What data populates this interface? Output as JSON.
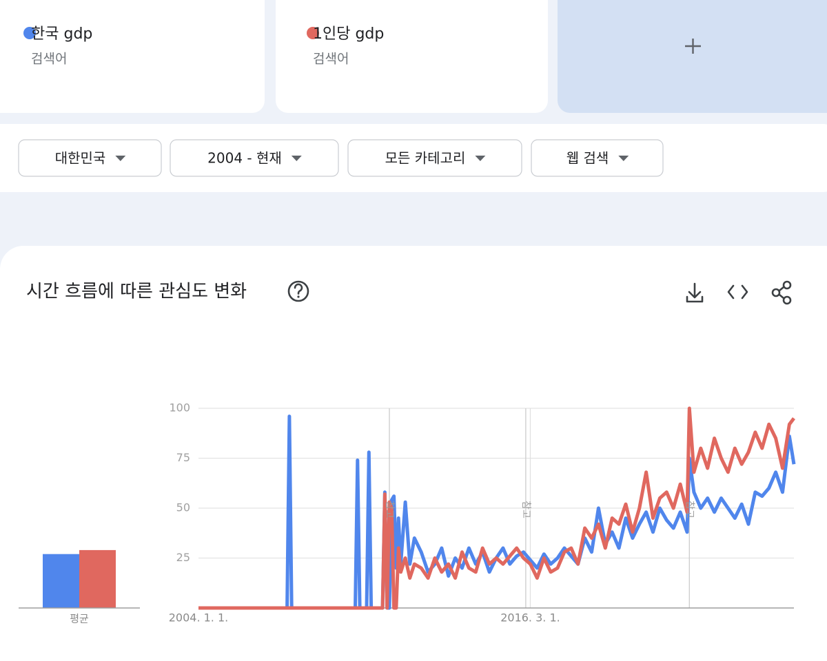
{
  "term_caption": "검색어",
  "filters": [
    "대한민국",
    "2004 - 현재",
    "모든 카테고리",
    "웹 검색"
  ],
  "chart_data": {
    "type": "line",
    "title": "시간 흐름에 따른 관심도 변화",
    "average_label": "평균",
    "x": [
      "2004-01",
      "2007-04",
      "2007-05",
      "2007-06",
      "2009-10",
      "2009-11",
      "2009-12",
      "2010-03",
      "2010-04",
      "2010-05",
      "2010-10",
      "2010-11",
      "2010-12",
      "2011-01",
      "2011-02",
      "2011-03",
      "2011-04",
      "2011-05",
      "2011-06",
      "2011-08",
      "2011-10",
      "2011-12",
      "2012-03",
      "2012-06",
      "2012-09",
      "2012-12",
      "2013-03",
      "2013-06",
      "2013-09",
      "2013-12",
      "2014-03",
      "2014-06",
      "2014-09",
      "2014-12",
      "2015-03",
      "2015-06",
      "2015-09",
      "2015-12",
      "2016-03",
      "2016-06",
      "2016-09",
      "2016-12",
      "2017-03",
      "2017-06",
      "2017-09",
      "2017-12",
      "2018-03",
      "2018-06",
      "2018-09",
      "2018-12",
      "2019-03",
      "2019-06",
      "2019-09",
      "2019-12",
      "2020-03",
      "2020-06",
      "2020-09",
      "2020-12",
      "2021-03",
      "2021-06",
      "2021-09",
      "2021-12",
      "2022-01",
      "2022-03",
      "2022-06",
      "2022-09",
      "2022-12",
      "2023-03",
      "2023-06",
      "2023-09",
      "2023-12",
      "2024-03",
      "2024-06",
      "2024-09",
      "2024-12",
      "2025-03",
      "2025-06",
      "2025-09",
      "2025-11"
    ],
    "series": [
      {
        "name": "한국 gdp",
        "color": "#5086ec",
        "average": 27,
        "values": [
          0,
          0,
          96,
          0,
          0,
          74,
          0,
          0,
          78,
          0,
          0,
          58,
          0,
          0,
          54,
          56,
          20,
          45,
          22,
          53,
          22,
          35,
          28,
          18,
          22,
          30,
          16,
          25,
          20,
          30,
          22,
          28,
          18,
          25,
          30,
          22,
          26,
          28,
          24,
          20,
          27,
          22,
          25,
          30,
          26,
          22,
          35,
          28,
          50,
          32,
          38,
          30,
          45,
          35,
          42,
          48,
          38,
          50,
          44,
          40,
          48,
          38,
          75,
          58,
          50,
          55,
          48,
          55,
          50,
          45,
          52,
          42,
          58,
          56,
          60,
          68,
          58,
          86,
          72
        ]
      },
      {
        "name": "1인당 gdp",
        "color": "#e0685f",
        "average": 29,
        "values": [
          0,
          0,
          0,
          0,
          0,
          0,
          0,
          0,
          0,
          0,
          0,
          57,
          0,
          53,
          50,
          0,
          0,
          30,
          18,
          25,
          15,
          22,
          20,
          15,
          25,
          18,
          22,
          15,
          28,
          20,
          18,
          30,
          22,
          25,
          22,
          26,
          30,
          25,
          22,
          15,
          25,
          18,
          20,
          28,
          30,
          22,
          40,
          35,
          42,
          30,
          45,
          42,
          52,
          38,
          50,
          68,
          45,
          55,
          58,
          50,
          62,
          48,
          100,
          68,
          80,
          70,
          85,
          75,
          68,
          80,
          72,
          78,
          88,
          80,
          92,
          85,
          70,
          92,
          95
        ]
      }
    ],
    "xlim": [
      "2004-01",
      "2025-11"
    ],
    "xticks": [
      {
        "value": "2004-01",
        "label": "2004. 1. 1."
      },
      {
        "value": "2016-03",
        "label": "2016. 3. 1."
      }
    ],
    "ylim": [
      0,
      100
    ],
    "yticks": [
      25,
      50,
      75,
      100
    ],
    "grid": true,
    "annotations": [
      {
        "x": "2011-01",
        "text": "참고"
      },
      {
        "x": "2016-01",
        "text": "참고"
      },
      {
        "x": "2022-01",
        "text": "참고"
      }
    ]
  }
}
